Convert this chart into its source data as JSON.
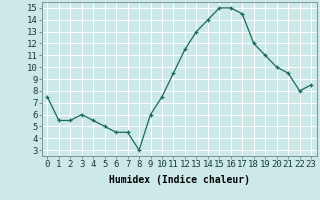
{
  "x": [
    0,
    1,
    2,
    3,
    4,
    5,
    6,
    7,
    8,
    9,
    10,
    11,
    12,
    13,
    14,
    15,
    16,
    17,
    18,
    19,
    20,
    21,
    22,
    23
  ],
  "y": [
    7.5,
    5.5,
    5.5,
    6.0,
    5.5,
    5.0,
    4.5,
    4.5,
    3.0,
    6.0,
    7.5,
    9.5,
    11.5,
    13.0,
    14.0,
    15.0,
    15.0,
    14.5,
    12.0,
    11.0,
    10.0,
    9.5,
    8.0,
    8.5
  ],
  "xlabel": "Humidex (Indice chaleur)",
  "line_color": "#1a6b5a",
  "marker_color": "#1a6b5a",
  "bg_color": "#cce8e8",
  "grid_color": "#ffffff",
  "xlim": [
    -0.5,
    23.5
  ],
  "ylim": [
    2.5,
    15.5
  ],
  "xticks": [
    0,
    1,
    2,
    3,
    4,
    5,
    6,
    7,
    8,
    9,
    10,
    11,
    12,
    13,
    14,
    15,
    16,
    17,
    18,
    19,
    20,
    21,
    22,
    23
  ],
  "yticks": [
    3,
    4,
    5,
    6,
    7,
    8,
    9,
    10,
    11,
    12,
    13,
    14,
    15
  ],
  "xlabel_fontsize": 7,
  "tick_fontsize": 6.5
}
